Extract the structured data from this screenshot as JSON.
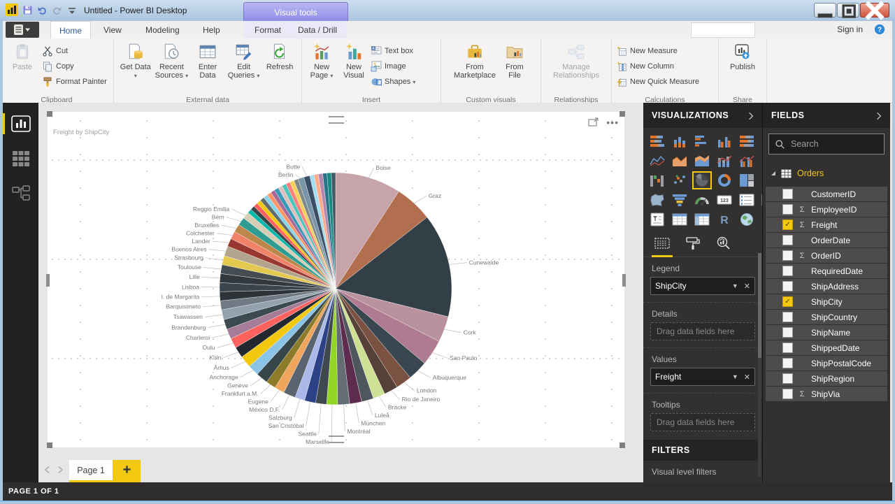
{
  "titlebar": {
    "title": "Untitled - Power BI Desktop",
    "contextual_label": "Visual tools"
  },
  "tabs": {
    "main": [
      "Home",
      "View",
      "Modeling",
      "Help"
    ],
    "contextual": [
      "Format",
      "Data / Drill"
    ],
    "active": "Home",
    "sign_in": "Sign in"
  },
  "ribbon": {
    "clipboard": {
      "label": "Clipboard",
      "paste": "Paste",
      "cut": "Cut",
      "copy": "Copy",
      "format_painter": "Format Painter"
    },
    "external_data": {
      "label": "External data",
      "get_data": "Get Data",
      "recent_sources": "Recent Sources",
      "enter_data": "Enter Data",
      "edit_queries": "Edit Queries",
      "refresh": "Refresh"
    },
    "insert": {
      "label": "Insert",
      "new_page": "New Page",
      "new_visual": "New Visual",
      "text_box": "Text box",
      "image": "Image",
      "shapes": "Shapes"
    },
    "custom_visuals": {
      "label": "Custom visuals",
      "from_marketplace": "From Marketplace",
      "from_file": "From File"
    },
    "relationships": {
      "label": "Relationships",
      "manage": "Manage Relationships"
    },
    "calculations": {
      "label": "Calculations",
      "new_measure": "New Measure",
      "new_column": "New Column",
      "new_quick_measure": "New Quick Measure"
    },
    "share": {
      "label": "Share",
      "publish": "Publish"
    }
  },
  "viz_panel": {
    "title": "VISUALIZATIONS",
    "icons": [
      "stacked-bar",
      "stacked-column",
      "clustered-bar",
      "clustered-column",
      "hundred-stacked-bar",
      "hundred-stacked-column",
      "line",
      "area",
      "stacked-area",
      "line-stacked-column",
      "line-clustered-column",
      "ribbon",
      "waterfall",
      "scatter",
      "pie",
      "donut",
      "treemap",
      "map",
      "filled-map",
      "funnel",
      "gauge",
      "card",
      "multi-row-card",
      "kpi",
      "slicer",
      "table",
      "matrix",
      "r-script",
      "arcgis-map",
      "more-options"
    ],
    "selected_icon": "pie",
    "wells": {
      "legend_label": "Legend",
      "legend_value": "ShipCity",
      "details_label": "Details",
      "details_placeholder": "Drag data fields here",
      "values_label": "Values",
      "values_value": "Freight",
      "tooltips_label": "Tooltips",
      "tooltips_placeholder": "Drag data fields here"
    },
    "filters": {
      "title": "FILTERS",
      "visual_level": "Visual level filters"
    }
  },
  "fields_panel": {
    "title": "FIELDS",
    "search_placeholder": "Search",
    "table": {
      "name": "Orders",
      "expanded": true
    },
    "fields": [
      {
        "name": "CustomerID",
        "numeric": false,
        "checked": false
      },
      {
        "name": "EmployeeID",
        "numeric": true,
        "checked": false
      },
      {
        "name": "Freight",
        "numeric": true,
        "checked": true
      },
      {
        "name": "OrderDate",
        "numeric": false,
        "checked": false
      },
      {
        "name": "OrderID",
        "numeric": true,
        "checked": false
      },
      {
        "name": "RequiredDate",
        "numeric": false,
        "checked": false
      },
      {
        "name": "ShipAddress",
        "numeric": false,
        "checked": false
      },
      {
        "name": "ShipCity",
        "numeric": false,
        "checked": true
      },
      {
        "name": "ShipCountry",
        "numeric": false,
        "checked": false
      },
      {
        "name": "ShipName",
        "numeric": false,
        "checked": false
      },
      {
        "name": "ShippedDate",
        "numeric": false,
        "checked": false
      },
      {
        "name": "ShipPostalCode",
        "numeric": false,
        "checked": false
      },
      {
        "name": "ShipRegion",
        "numeric": false,
        "checked": false
      },
      {
        "name": "ShipVia",
        "numeric": true,
        "checked": false
      }
    ]
  },
  "canvas": {
    "page_tab": "Page 1",
    "status": "PAGE 1 OF 1"
  },
  "colors": {
    "accent": "#f2c811",
    "panel_bg": "#323130",
    "header_bg": "#252423",
    "contextual_purple": "#8f8ce6"
  },
  "chart_data": {
    "type": "pie",
    "title": "Freight by ShipCity",
    "legend_field": "ShipCity",
    "value_field": "Freight",
    "label_style": "outside labels with leader lines",
    "slices": [
      {
        "label": "Boise",
        "angle_deg": 33,
        "color": "#c6a4aa"
      },
      {
        "label": "Graz",
        "angle_deg": 19,
        "color": "#b26f4f"
      },
      {
        "label": "Cunewalde",
        "angle_deg": 52,
        "color": "#333f47"
      },
      {
        "label": "Cork",
        "angle_deg": 13,
        "color": "#b8939e"
      },
      {
        "label": "Sao Paulo",
        "angle_deg": 13,
        "color": "#ae7b91"
      },
      {
        "label": "Albuquerque",
        "angle_deg": 10,
        "color": "#3a4750"
      },
      {
        "label": "London",
        "angle_deg": 8,
        "color": "#7b5242"
      },
      {
        "label": "Rio de Janeiro",
        "angle_deg": 7,
        "color": "#554137"
      },
      {
        "label": "Bräcke",
        "angle_deg": 6,
        "color": "#cfe095"
      },
      {
        "label": "Luleå",
        "angle_deg": 6,
        "color": "#4f575e"
      },
      {
        "label": "München",
        "angle_deg": 6,
        "color": "#5e2c4e"
      },
      {
        "label": "Montréal",
        "angle_deg": 6,
        "color": "#646c74"
      },
      {
        "label": "Marseille",
        "angle_deg": 5.5,
        "color": "#93d628"
      },
      {
        "label": "Seattle",
        "angle_deg": 5.5,
        "color": "#40484f"
      },
      {
        "label": "San Cristóbal",
        "angle_deg": 5.5,
        "color": "#2c4186"
      },
      {
        "label": "Salzburg",
        "angle_deg": 5,
        "color": "#aab8ea"
      },
      {
        "label": "México D.F.",
        "angle_deg": 6,
        "color": "#5a646e"
      },
      {
        "label": "Eugene",
        "angle_deg": 5,
        "color": "#f0a55c"
      },
      {
        "label": "Frankfurt a.M.",
        "angle_deg": 5,
        "color": "#8c7b28"
      },
      {
        "label": "Genève",
        "angle_deg": 6,
        "color": "#374649"
      },
      {
        "label": "Anchorage",
        "angle_deg": 5.5,
        "color": "#8ac4e6"
      },
      {
        "label": "Århus",
        "angle_deg": 6,
        "color": "#f2c80f"
      },
      {
        "label": "Köln",
        "angle_deg": 5.5,
        "color": "#22282d"
      },
      {
        "label": "Oulu",
        "angle_deg": 5,
        "color": "#fd625e"
      },
      {
        "label": "Charleroi",
        "angle_deg": 5,
        "color": "#a67c99"
      },
      {
        "label": "Brandenburg",
        "angle_deg": 5,
        "color": "#3e4a52"
      },
      {
        "label": "Tsawassen",
        "angle_deg": 5,
        "color": "#93a2ae"
      },
      {
        "label": "Barquisimeto",
        "angle_deg": 4.5,
        "color": "#6f7a84"
      },
      {
        "label": "I. de Margarita",
        "angle_deg": 4.5,
        "color": "#2d3338"
      },
      {
        "label": "Lisboa",
        "angle_deg": 4.5,
        "color": "#3a444c"
      },
      {
        "label": "Lille",
        "angle_deg": 4.5,
        "color": "#31383e"
      },
      {
        "label": "Toulouse",
        "angle_deg": 4.5,
        "color": "#454c52"
      },
      {
        "label": "Strasbourg",
        "angle_deg": 4.5,
        "color": "#e3c94f"
      },
      {
        "label": "Buenos Aires",
        "angle_deg": 5,
        "color": "#b3a48e"
      },
      {
        "label": "Lander",
        "angle_deg": 4,
        "color": "#98372f"
      },
      {
        "label": "Colchester",
        "angle_deg": 4,
        "color": "#f08268"
      },
      {
        "label": "Bruxelles",
        "angle_deg": 4,
        "color": "#bc8748"
      },
      {
        "label": "Bérn",
        "angle_deg": 4,
        "color": "#2e9c90"
      },
      {
        "label": "Reggio Emilia",
        "angle_deg": 3.5,
        "color": "#d6cdb4"
      },
      {
        "label": "",
        "angle_deg": 2.15,
        "color": "#01b8aa"
      },
      {
        "label": "",
        "angle_deg": 2.15,
        "color": "#374649"
      },
      {
        "label": "",
        "angle_deg": 2.15,
        "color": "#fd625e"
      },
      {
        "label": "",
        "angle_deg": 2.15,
        "color": "#f2c80f"
      },
      {
        "label": "",
        "angle_deg": 2.15,
        "color": "#5f6b6d"
      },
      {
        "label": "",
        "angle_deg": 2.15,
        "color": "#8ad4eb"
      },
      {
        "label": "",
        "angle_deg": 2.15,
        "color": "#fe9666"
      },
      {
        "label": "",
        "angle_deg": 2.15,
        "color": "#a66999"
      },
      {
        "label": "",
        "angle_deg": 2.15,
        "color": "#3599b8"
      },
      {
        "label": "",
        "angle_deg": 2.15,
        "color": "#dfbfbf"
      },
      {
        "label": "",
        "angle_deg": 2.15,
        "color": "#4ac5bb"
      },
      {
        "label": "",
        "angle_deg": 2.15,
        "color": "#fb8281"
      },
      {
        "label": "",
        "angle_deg": 2.15,
        "color": "#f4d25a"
      },
      {
        "label": "",
        "angle_deg": 2.15,
        "color": "#7f898a"
      },
      {
        "label": "Berlin",
        "angle_deg": 3,
        "color": "#7b95a8"
      },
      {
        "label": "Butte",
        "angle_deg": 3,
        "color": "#3a4e66"
      },
      {
        "label": "",
        "angle_deg": 2.15,
        "color": "#a4ddee"
      },
      {
        "label": "",
        "angle_deg": 2.15,
        "color": "#fdab89"
      },
      {
        "label": "",
        "angle_deg": 2.15,
        "color": "#b687ac"
      },
      {
        "label": "",
        "angle_deg": 2.15,
        "color": "#28738a"
      },
      {
        "label": "",
        "angle_deg": 2.15,
        "color": "#168980"
      },
      {
        "label": "",
        "angle_deg": 2.15,
        "color": "#445966"
      }
    ]
  }
}
